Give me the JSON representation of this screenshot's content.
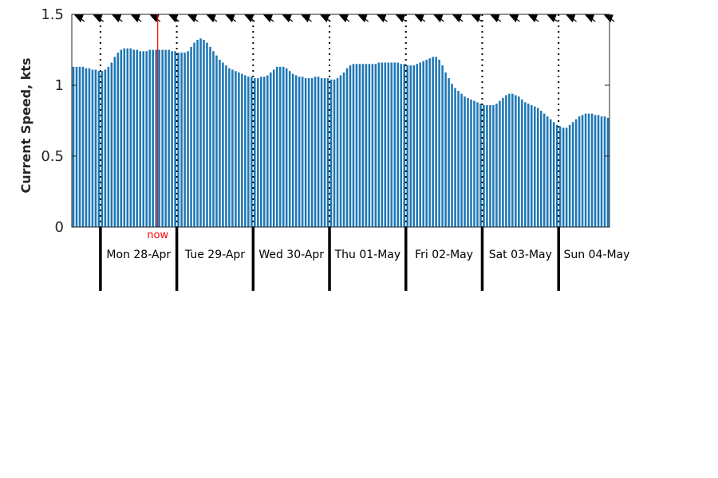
{
  "chart_data": {
    "type": "bar",
    "ylabel": "Current Speed, kts",
    "ylim": [
      0,
      1.5
    ],
    "yticks": [
      0,
      0.5,
      1,
      1.5
    ],
    "ytick_labels": [
      "0",
      "0.5",
      "1",
      "1.5"
    ],
    "grid": false,
    "bar_color": "#1f77b4",
    "now_color": "#ff0000",
    "now_label": "now",
    "now_day_offset": 0.75,
    "day_labels": [
      "Mon 28-Apr",
      "Tue 29-Apr",
      "Wed 30-Apr",
      "Thu 01-May",
      "Fri 02-May",
      "Sat 03-May",
      "Sun 04-May"
    ],
    "hours_per_day": 24,
    "start_offset_hours": 9,
    "direction_marker_count": 29,
    "values": [
      1.13,
      1.13,
      1.13,
      1.13,
      1.12,
      1.12,
      1.11,
      1.11,
      1.1,
      1.1,
      1.11,
      1.13,
      1.16,
      1.2,
      1.23,
      1.25,
      1.26,
      1.26,
      1.26,
      1.25,
      1.25,
      1.24,
      1.24,
      1.24,
      1.25,
      1.25,
      1.25,
      1.25,
      1.25,
      1.25,
      1.25,
      1.24,
      1.24,
      1.23,
      1.23,
      1.23,
      1.24,
      1.27,
      1.3,
      1.32,
      1.33,
      1.32,
      1.3,
      1.27,
      1.24,
      1.21,
      1.18,
      1.16,
      1.14,
      1.12,
      1.11,
      1.1,
      1.09,
      1.08,
      1.07,
      1.06,
      1.06,
      1.05,
      1.05,
      1.06,
      1.06,
      1.07,
      1.09,
      1.11,
      1.13,
      1.13,
      1.13,
      1.12,
      1.1,
      1.08,
      1.07,
      1.06,
      1.06,
      1.05,
      1.05,
      1.05,
      1.06,
      1.06,
      1.05,
      1.05,
      1.05,
      1.04,
      1.04,
      1.05,
      1.07,
      1.09,
      1.12,
      1.14,
      1.15,
      1.15,
      1.15,
      1.15,
      1.15,
      1.15,
      1.15,
      1.15,
      1.16,
      1.16,
      1.16,
      1.16,
      1.16,
      1.16,
      1.16,
      1.15,
      1.15,
      1.14,
      1.14,
      1.14,
      1.15,
      1.16,
      1.17,
      1.18,
      1.19,
      1.2,
      1.2,
      1.18,
      1.14,
      1.09,
      1.05,
      1.01,
      0.98,
      0.96,
      0.94,
      0.92,
      0.91,
      0.9,
      0.89,
      0.88,
      0.87,
      0.86,
      0.86,
      0.86,
      0.86,
      0.87,
      0.89,
      0.91,
      0.93,
      0.94,
      0.94,
      0.93,
      0.92,
      0.9,
      0.88,
      0.87,
      0.86,
      0.85,
      0.84,
      0.82,
      0.8,
      0.78,
      0.76,
      0.74,
      0.72,
      0.71,
      0.7,
      0.7,
      0.72,
      0.74,
      0.76,
      0.78,
      0.79,
      0.8,
      0.8,
      0.8,
      0.79,
      0.79,
      0.78,
      0.78,
      0.77
    ]
  }
}
